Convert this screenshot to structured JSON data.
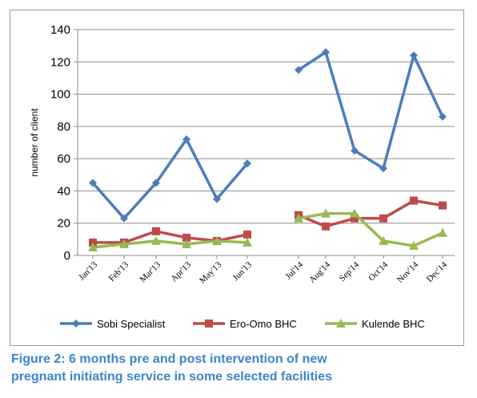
{
  "chart_data": {
    "type": "line",
    "title": "",
    "xlabel": "",
    "ylabel": "number of client",
    "ylim": [
      0,
      140
    ],
    "yticks": [
      0,
      20,
      40,
      60,
      80,
      100,
      120,
      140
    ],
    "grid": true,
    "legend_position": "bottom",
    "categories": [
      "Jan'13",
      "Feb'13",
      "Mar'13",
      "Apr'13",
      "May'13",
      "Jun'13",
      "Jul'14",
      "Aug'14",
      "Sep'14",
      "Oct'14",
      "Nov'14",
      "Dec'14"
    ],
    "series": [
      {
        "name": "Sobi Specialist",
        "color": "#4a7ebb",
        "marker": "diamond",
        "values": [
          45,
          23,
          45,
          72,
          35,
          57,
          115,
          126,
          65,
          54,
          124,
          86
        ]
      },
      {
        "name": "Ero-Omo BHC",
        "color": "#be4b48",
        "marker": "square",
        "values": [
          8,
          8,
          15,
          11,
          9,
          13,
          25,
          18,
          23,
          23,
          34,
          31
        ]
      },
      {
        "name": "Kulende BHC",
        "color": "#98b954",
        "marker": "triangle",
        "values": [
          5,
          7,
          9,
          7,
          9,
          8,
          23,
          26,
          26,
          9,
          6,
          14
        ]
      }
    ]
  },
  "caption": {
    "line1": "Figure 2: 6 months pre and post intervention of new",
    "line2": "pregnant initiating  service in some selected facilities"
  }
}
